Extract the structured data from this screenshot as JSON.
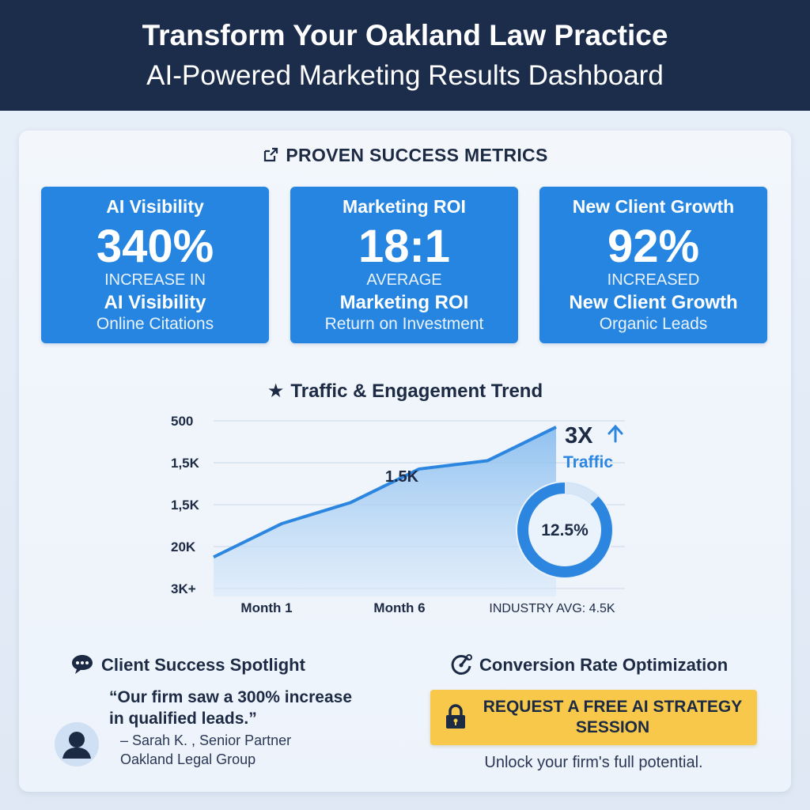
{
  "header": {
    "title": "Transform Your Oakland Law Practice",
    "subtitle": "AI-Powered Marketing Results Dashboard"
  },
  "metrics": {
    "section_title": "PROVEN SUCCESS METRICS",
    "icon": "external-link-icon",
    "cards": [
      {
        "title": "AI Visibility",
        "value": "340%",
        "line1": "INCREASE IN",
        "line2": "AI Visibility",
        "line3": "Online Citations"
      },
      {
        "title": "Marketing ROI",
        "value": "18:1",
        "line1": "AVERAGE",
        "line2": "Marketing ROI",
        "line3": "Return on Investment"
      },
      {
        "title": "New Client Growth",
        "value": "92%",
        "line1": "INCREASED",
        "line2": "New Client Growth",
        "line3": "Organic Leads"
      }
    ]
  },
  "trend": {
    "title": "Traffic & Engagement Trend",
    "icon": "star-icon"
  },
  "chart_data": {
    "type": "area",
    "title": "Traffic & Engagement Trend",
    "y_tick_labels": [
      "500",
      "1,5K",
      "1,5K",
      "20K",
      "3K+"
    ],
    "x_tick_labels": [
      "Month 1",
      "Month 6"
    ],
    "series": [
      {
        "values": [
          3.25,
          2.45,
          1.95,
          1.15,
          0.95,
          0.15
        ]
      }
    ],
    "y_axis_note": "y values given in tick-row units (0 = top row '500', 4 = bottom row '3K+')",
    "point_label": "1.5K",
    "callout_value": "3X",
    "callout_label": "Traffic",
    "donut_value": "12.5%",
    "donut_fraction": 0.125,
    "industry_avg": "INDUSTRY AVG: 4.5K",
    "grid": true,
    "color": "#2c86e0"
  },
  "client": {
    "heading": "Client Success Spotlight",
    "icon": "chat-bubble-icon",
    "quote_line1": "“Our firm saw a 300% increase",
    "quote_line2": "in qualified leads.”",
    "author": "– Sarah K. , Senior Partner",
    "company": "Oakland Legal Group",
    "avatar_icon": "user-avatar-icon"
  },
  "conversion": {
    "heading": "Conversion Rate Optimization",
    "icon": "gauge-icon",
    "cta_line1": "REQUEST A FREE AI STRATEGY",
    "cta_line2": "SESSION",
    "cta_icon": "lock-icon",
    "subtext": "Unlock your firm's full potential."
  },
  "colors": {
    "header_bg": "#1c2d4c",
    "card_bg": "#2585e0",
    "accent": "#2c86e0",
    "cta_bg": "#f7c84a"
  }
}
